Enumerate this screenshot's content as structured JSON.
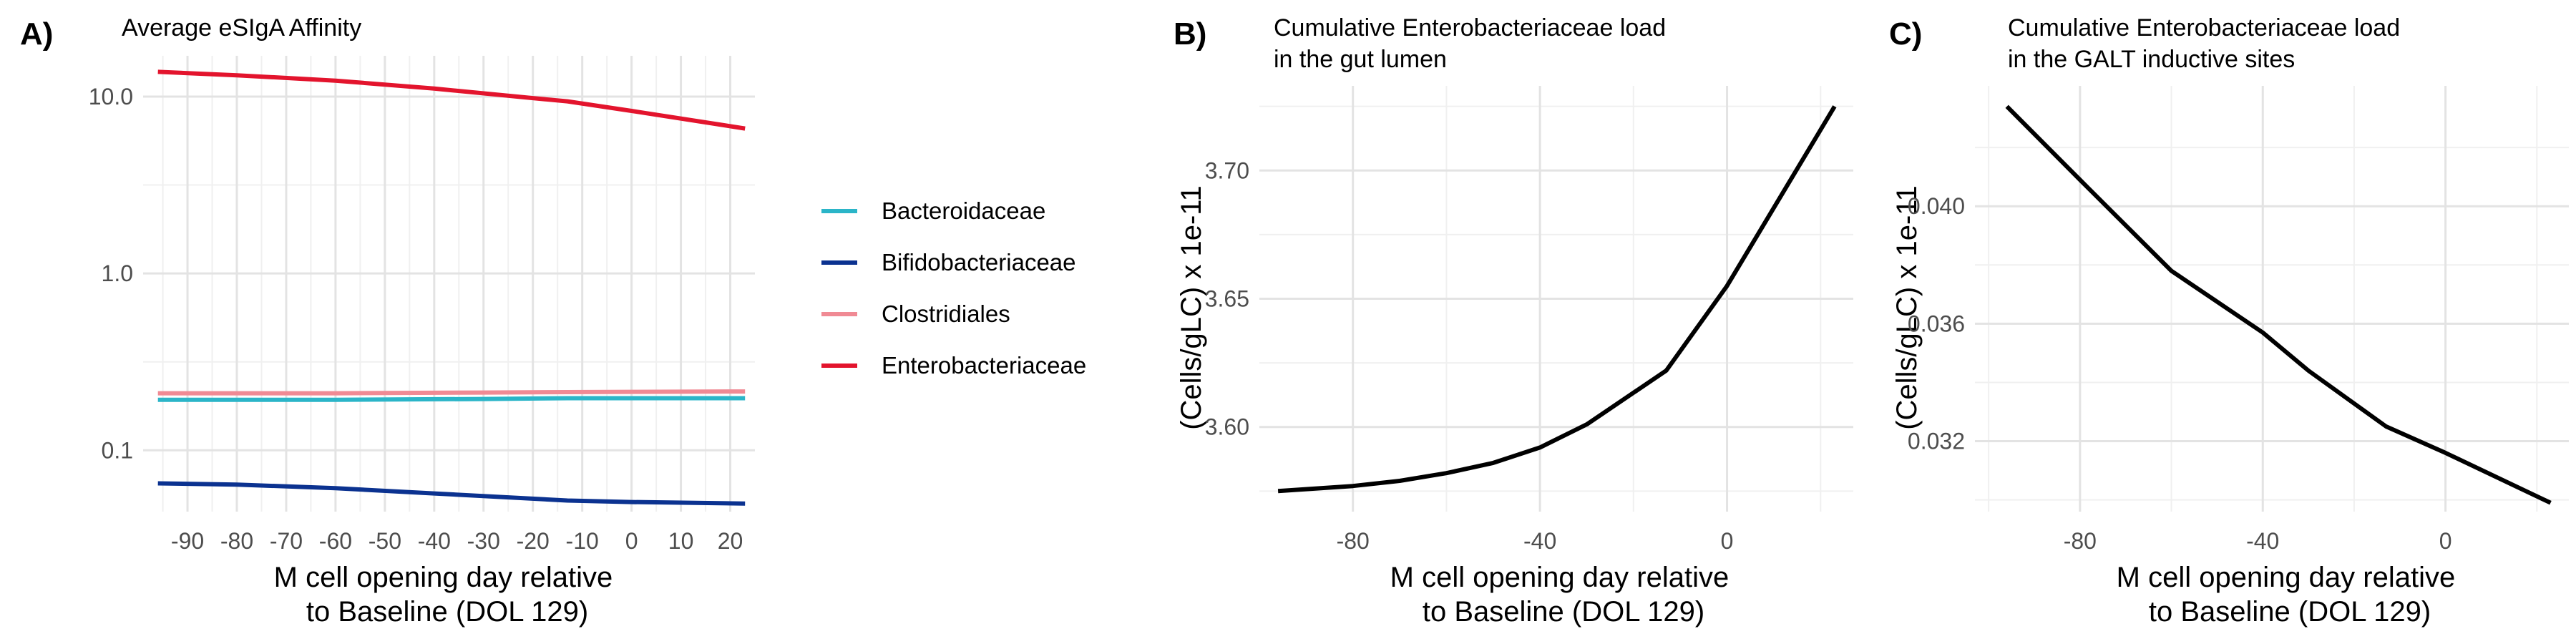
{
  "chart_data": [
    {
      "panel_label": "A)",
      "type": "line",
      "title": "Average eSIgA Affinity",
      "xlabel": "M cell opening day relative\nto Baseline (DOL 129)",
      "ylabel": "",
      "xlim": [
        -99,
        25
      ],
      "ylim": [
        0.045,
        17
      ],
      "yscale": "log",
      "x_ticks": [
        -90,
        -80,
        -70,
        -60,
        -50,
        -40,
        -30,
        -20,
        -10,
        0,
        10,
        20
      ],
      "y_ticks": [
        0.1,
        1.0,
        10.0
      ],
      "y_tick_labels": [
        "0.1",
        "1.0",
        "10.0"
      ],
      "grid": true,
      "legend": "right",
      "series": [
        {
          "name": "Bacteroidaceae",
          "color": "#2bb5c8",
          "x": [
            -96,
            -60,
            -30,
            -13,
            0,
            23
          ],
          "y": [
            0.193,
            0.193,
            0.195,
            0.197,
            0.197,
            0.197
          ]
        },
        {
          "name": "Bifidobacteriaceae",
          "color": "#0b3290",
          "x": [
            -96,
            -80,
            -60,
            -40,
            -13,
            0,
            23
          ],
          "y": [
            0.065,
            0.064,
            0.061,
            0.057,
            0.052,
            0.051,
            0.05
          ]
        },
        {
          "name": "Clostridiales",
          "color": "#f08a94",
          "x": [
            -96,
            -60,
            -30,
            0,
            23
          ],
          "y": [
            0.21,
            0.21,
            0.212,
            0.214,
            0.215
          ]
        },
        {
          "name": "Enterobacteriaceae",
          "color": "#e3142d",
          "x": [
            -96,
            -80,
            -60,
            -40,
            -20,
            -13,
            0,
            23
          ],
          "y": [
            13.8,
            13.2,
            12.3,
            11.1,
            9.8,
            9.4,
            8.3,
            6.6
          ]
        }
      ]
    },
    {
      "panel_label": "B)",
      "type": "line",
      "title": "Cumulative Enterobacteriaceae load\nin the gut lumen",
      "xlabel": "M cell opening day relative\nto Baseline (DOL 129)",
      "ylabel": "(Cells/gLC) x 1e-11",
      "xlim": [
        -100,
        27
      ],
      "ylim": [
        3.567,
        3.733
      ],
      "yscale": "linear",
      "x_ticks": [
        -80,
        -40,
        0
      ],
      "y_ticks": [
        3.6,
        3.65,
        3.7
      ],
      "y_tick_labels": [
        "3.60",
        "3.65",
        "3.70"
      ],
      "grid": true,
      "series": [
        {
          "color": "#000000",
          "x": [
            -96,
            -80,
            -70,
            -60,
            -50,
            -40,
            -30,
            -13,
            0,
            23
          ],
          "y": [
            3.575,
            3.577,
            3.579,
            3.582,
            3.586,
            3.592,
            3.601,
            3.622,
            3.655,
            3.725
          ]
        }
      ]
    },
    {
      "panel_label": "C)",
      "type": "line",
      "title": "Cumulative Enterobacteriaceae load\nin the GALT inductive sites",
      "xlabel": "M cell opening day relative\nto Baseline (DOL 129)",
      "ylabel": "(Cells/gLC) x 1e-11",
      "xlim": [
        -103,
        27
      ],
      "ylim": [
        0.0296,
        0.0441
      ],
      "yscale": "linear",
      "x_ticks": [
        -80,
        -40,
        0
      ],
      "y_ticks": [
        0.032,
        0.036,
        0.04
      ],
      "y_tick_labels": [
        "0.032",
        "0.036",
        "0.040"
      ],
      "grid": true,
      "series": [
        {
          "color": "#000000",
          "x": [
            -96,
            -80,
            -60,
            -40,
            -30,
            -13,
            0,
            23
          ],
          "y": [
            0.0434,
            0.0409,
            0.0378,
            0.0357,
            0.0344,
            0.0325,
            0.0316,
            0.0299
          ]
        }
      ]
    }
  ]
}
